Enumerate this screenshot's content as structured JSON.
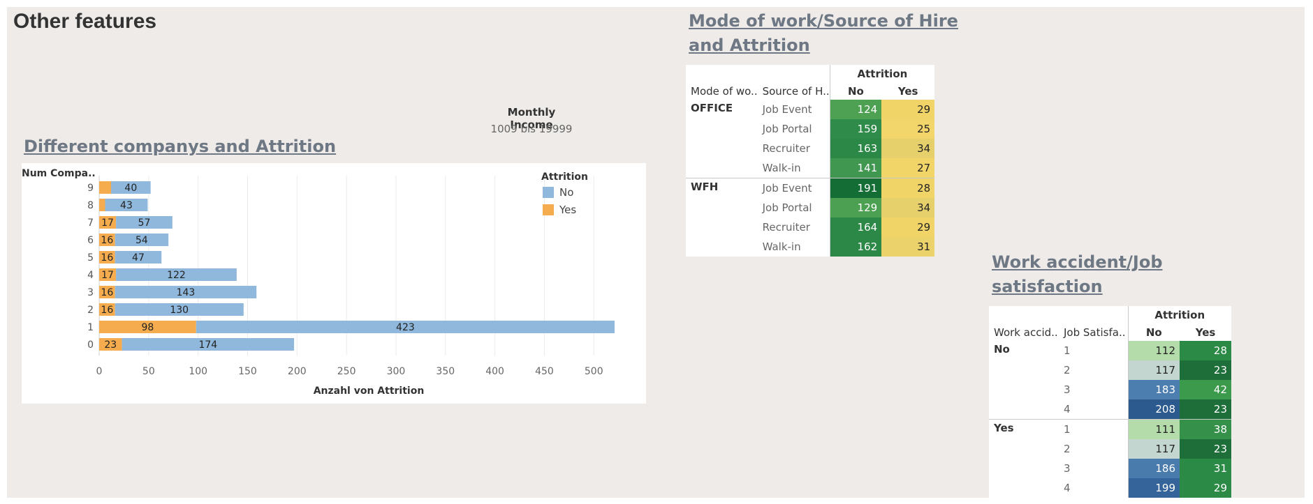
{
  "page": {
    "title": "Other features"
  },
  "income_filter": {
    "label": "Monthly Income",
    "value": "1009 bis 19999"
  },
  "companies": {
    "title": "Different companys and Attrition",
    "row_header": "Num Compa..",
    "legend_title": "Attrition",
    "legend": [
      {
        "label": "No",
        "color": "#8fb8dc"
      },
      {
        "label": "Yes",
        "color": "#f5ac4e"
      }
    ]
  },
  "chart_data": {
    "type": "bar",
    "orientation": "horizontal",
    "stacked": true,
    "categories": [
      "9",
      "8",
      "7",
      "6",
      "5",
      "4",
      "3",
      "2",
      "1",
      "0"
    ],
    "series": [
      {
        "name": "Yes",
        "values": [
          12,
          6,
          17,
          16,
          16,
          17,
          16,
          16,
          98,
          23
        ],
        "color": "#f5ac4e"
      },
      {
        "name": "No",
        "values": [
          40,
          43,
          57,
          54,
          47,
          122,
          143,
          130,
          423,
          174
        ],
        "color": "#8fb8dc"
      }
    ],
    "data_labels": {
      "Yes": [
        "",
        "",
        "17",
        "16",
        "16",
        "17",
        "16",
        "16",
        "98",
        "23"
      ],
      "No": [
        "40",
        "43",
        "57",
        "54",
        "47",
        "122",
        "143",
        "130",
        "423",
        "174"
      ]
    },
    "xlabel": "Anzahl von Attrition",
    "ylabel": "Num Compa..",
    "xlim": [
      0,
      545
    ],
    "xticks": [
      "0",
      "50",
      "100",
      "150",
      "200",
      "250",
      "300",
      "350",
      "400",
      "450",
      "500"
    ],
    "grid": true,
    "legend_position": "top-right"
  },
  "mode": {
    "title_line1": "Mode of work/Source of Hire",
    "title_line2": "and Attrition",
    "group_header": "Attrition",
    "col1": "Mode of wo..",
    "col2": "Source of H..",
    "col_no": "No",
    "col_yes": "Yes",
    "groups": [
      {
        "name": "OFFICE",
        "rows": [
          {
            "label": "Job Event",
            "no": "124",
            "yes": "29",
            "no_color": "#4ea053",
            "yes_color": "#f1d467",
            "no_text": "#ffffff"
          },
          {
            "label": "Job Portal",
            "no": "159",
            "yes": "25",
            "no_color": "#2f8b49",
            "yes_color": "#f3d66b",
            "no_text": "#ffffff"
          },
          {
            "label": "Recruiter",
            "no": "163",
            "yes": "34",
            "no_color": "#2c8847",
            "yes_color": "#e6d06c",
            "no_text": "#ffffff"
          },
          {
            "label": "Walk-in",
            "no": "141",
            "yes": "27",
            "no_color": "#3f9750",
            "yes_color": "#f1d568",
            "no_text": "#ffffff"
          }
        ]
      },
      {
        "name": "WFH",
        "rows": [
          {
            "label": "Job Event",
            "no": "191",
            "yes": "28",
            "no_color": "#136d34",
            "yes_color": "#f1d468",
            "no_text": "#ffffff"
          },
          {
            "label": "Job Portal",
            "no": "129",
            "yes": "34",
            "no_color": "#4ba052",
            "yes_color": "#e6d06c",
            "no_text": "#ffffff"
          },
          {
            "label": "Recruiter",
            "no": "164",
            "yes": "29",
            "no_color": "#2c8847",
            "yes_color": "#f1d467",
            "no_text": "#ffffff"
          },
          {
            "label": "Walk-in",
            "no": "162",
            "yes": "31",
            "no_color": "#2c8847",
            "yes_color": "#ecd26a",
            "no_text": "#ffffff"
          }
        ]
      }
    ]
  },
  "accident": {
    "title_line1": "Work accident/Job",
    "title_line2": "satisfaction",
    "group_header": "Attrition",
    "col1": "Work accid..",
    "col2": "Job Satisfa..",
    "col_no": "No",
    "col_yes": "Yes",
    "groups": [
      {
        "name": "No",
        "rows": [
          {
            "label": "1",
            "no": "112",
            "yes": "28",
            "no_color": "#b3dcaa",
            "yes_color": "#2b8a45",
            "no_text": "#222222"
          },
          {
            "label": "2",
            "no": "117",
            "yes": "23",
            "no_color": "#c3d7d0",
            "yes_color": "#1e6e3a",
            "no_text": "#222222"
          },
          {
            "label": "3",
            "no": "183",
            "yes": "42",
            "no_color": "#4d7eb0",
            "yes_color": "#3c9a4c",
            "no_text": "#ffffff"
          },
          {
            "label": "4",
            "no": "208",
            "yes": "23",
            "no_color": "#2c5a8e",
            "yes_color": "#1e6e3a",
            "no_text": "#ffffff"
          }
        ]
      },
      {
        "name": "Yes",
        "rows": [
          {
            "label": "1",
            "no": "111",
            "yes": "38",
            "no_color": "#b3dcaa",
            "yes_color": "#35914a",
            "no_text": "#222222"
          },
          {
            "label": "2",
            "no": "117",
            "yes": "23",
            "no_color": "#c3d7d0",
            "yes_color": "#1e6e3a",
            "no_text": "#222222"
          },
          {
            "label": "3",
            "no": "186",
            "yes": "31",
            "no_color": "#4a7bad",
            "yes_color": "#2b8a45",
            "no_text": "#ffffff"
          },
          {
            "label": "4",
            "no": "199",
            "yes": "29",
            "no_color": "#35649a",
            "yes_color": "#2b8a45",
            "no_text": "#ffffff"
          }
        ]
      }
    ]
  }
}
